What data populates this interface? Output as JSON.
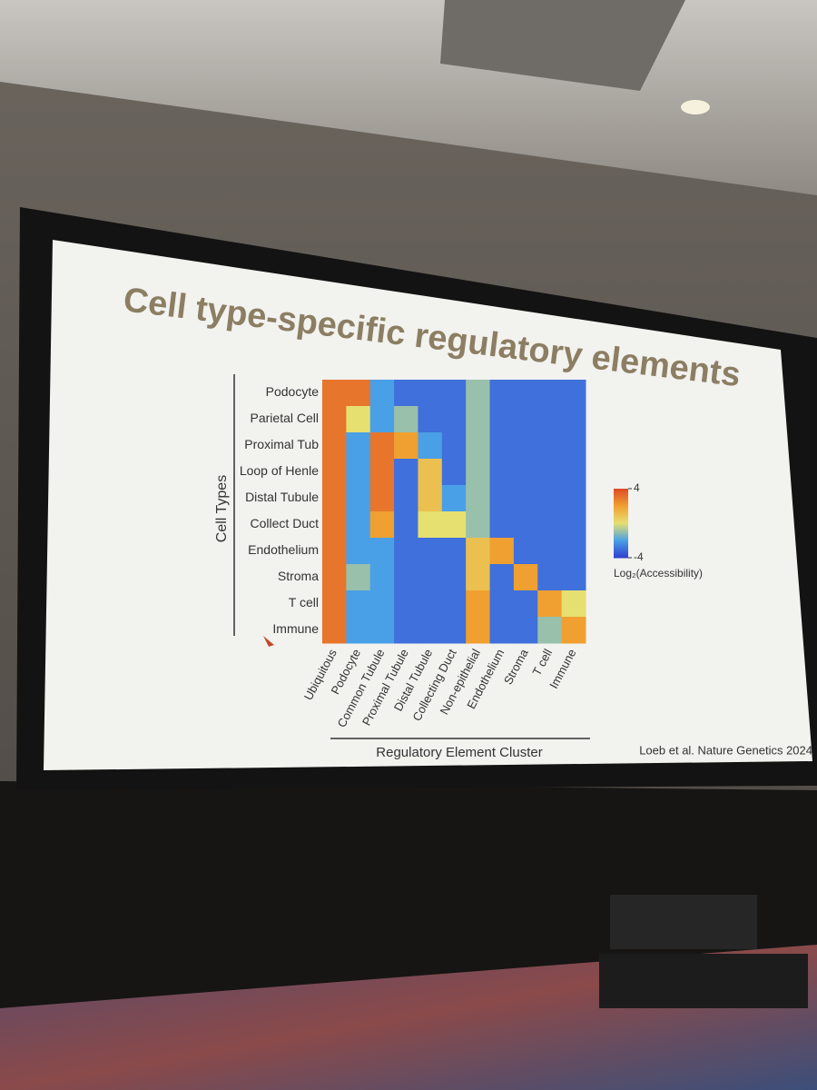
{
  "chart_data": {
    "type": "heatmap",
    "title": "Cell type-specific regulatory elements",
    "y_label": "Cell Types",
    "x_label": "Regulatory Element Cluster",
    "y_categories": [
      "Podocyte",
      "Parietal Cell",
      "Proximal Tub",
      "Loop of Henle",
      "Distal Tubule",
      "Collect Duct",
      "Endothelium",
      "Stroma",
      "T cell",
      "Immune"
    ],
    "x_categories": [
      "Ubiquitous",
      "Podocyte",
      "Common Tubule",
      "Proximal Tubule",
      "Distal Tubule",
      "Collecting Duct",
      "Non-epithelial",
      "Endothelium",
      "Stroma",
      "T cell",
      "Immune"
    ],
    "values": [
      [
        3,
        3,
        -2,
        -3,
        -3,
        -3,
        -1,
        -3,
        -3,
        -3,
        -3
      ],
      [
        3,
        0,
        -2,
        -1,
        -3,
        -3,
        -1,
        -3,
        -3,
        -3,
        -3
      ],
      [
        3,
        -2,
        3,
        2,
        -2,
        -3,
        -1,
        -3,
        -3,
        -3,
        -3
      ],
      [
        3,
        -2,
        3,
        -3,
        1,
        -3,
        -1,
        -3,
        -3,
        -3,
        -3
      ],
      [
        3,
        -2,
        3,
        -3,
        1,
        -2,
        -1,
        -3,
        -3,
        -3,
        -3
      ],
      [
        3,
        -2,
        2,
        -3,
        0,
        0,
        -1,
        -3,
        -3,
        -3,
        -3
      ],
      [
        3,
        -2,
        -2,
        -3,
        -3,
        -3,
        1,
        2,
        -3,
        -3,
        -3
      ],
      [
        3,
        -1,
        -2,
        -3,
        -3,
        -3,
        1,
        -3,
        2,
        -3,
        -3
      ],
      [
        3,
        -2,
        -2,
        -3,
        -3,
        -3,
        2,
        -3,
        -3,
        2,
        0
      ],
      [
        3,
        -2,
        -2,
        -3,
        -3,
        -3,
        2,
        -3,
        -3,
        -1,
        2
      ]
    ],
    "zlim": [
      -4,
      4
    ],
    "zticks": [
      4,
      -4
    ],
    "colorbar_label": "Log₂(Accessibility)",
    "colormap": [
      "#3340d0",
      "#4aa0e6",
      "#e6e070",
      "#f0a030",
      "#dd4a28"
    ],
    "annotation": "Loeb et al. Nature Genetics 2024"
  }
}
